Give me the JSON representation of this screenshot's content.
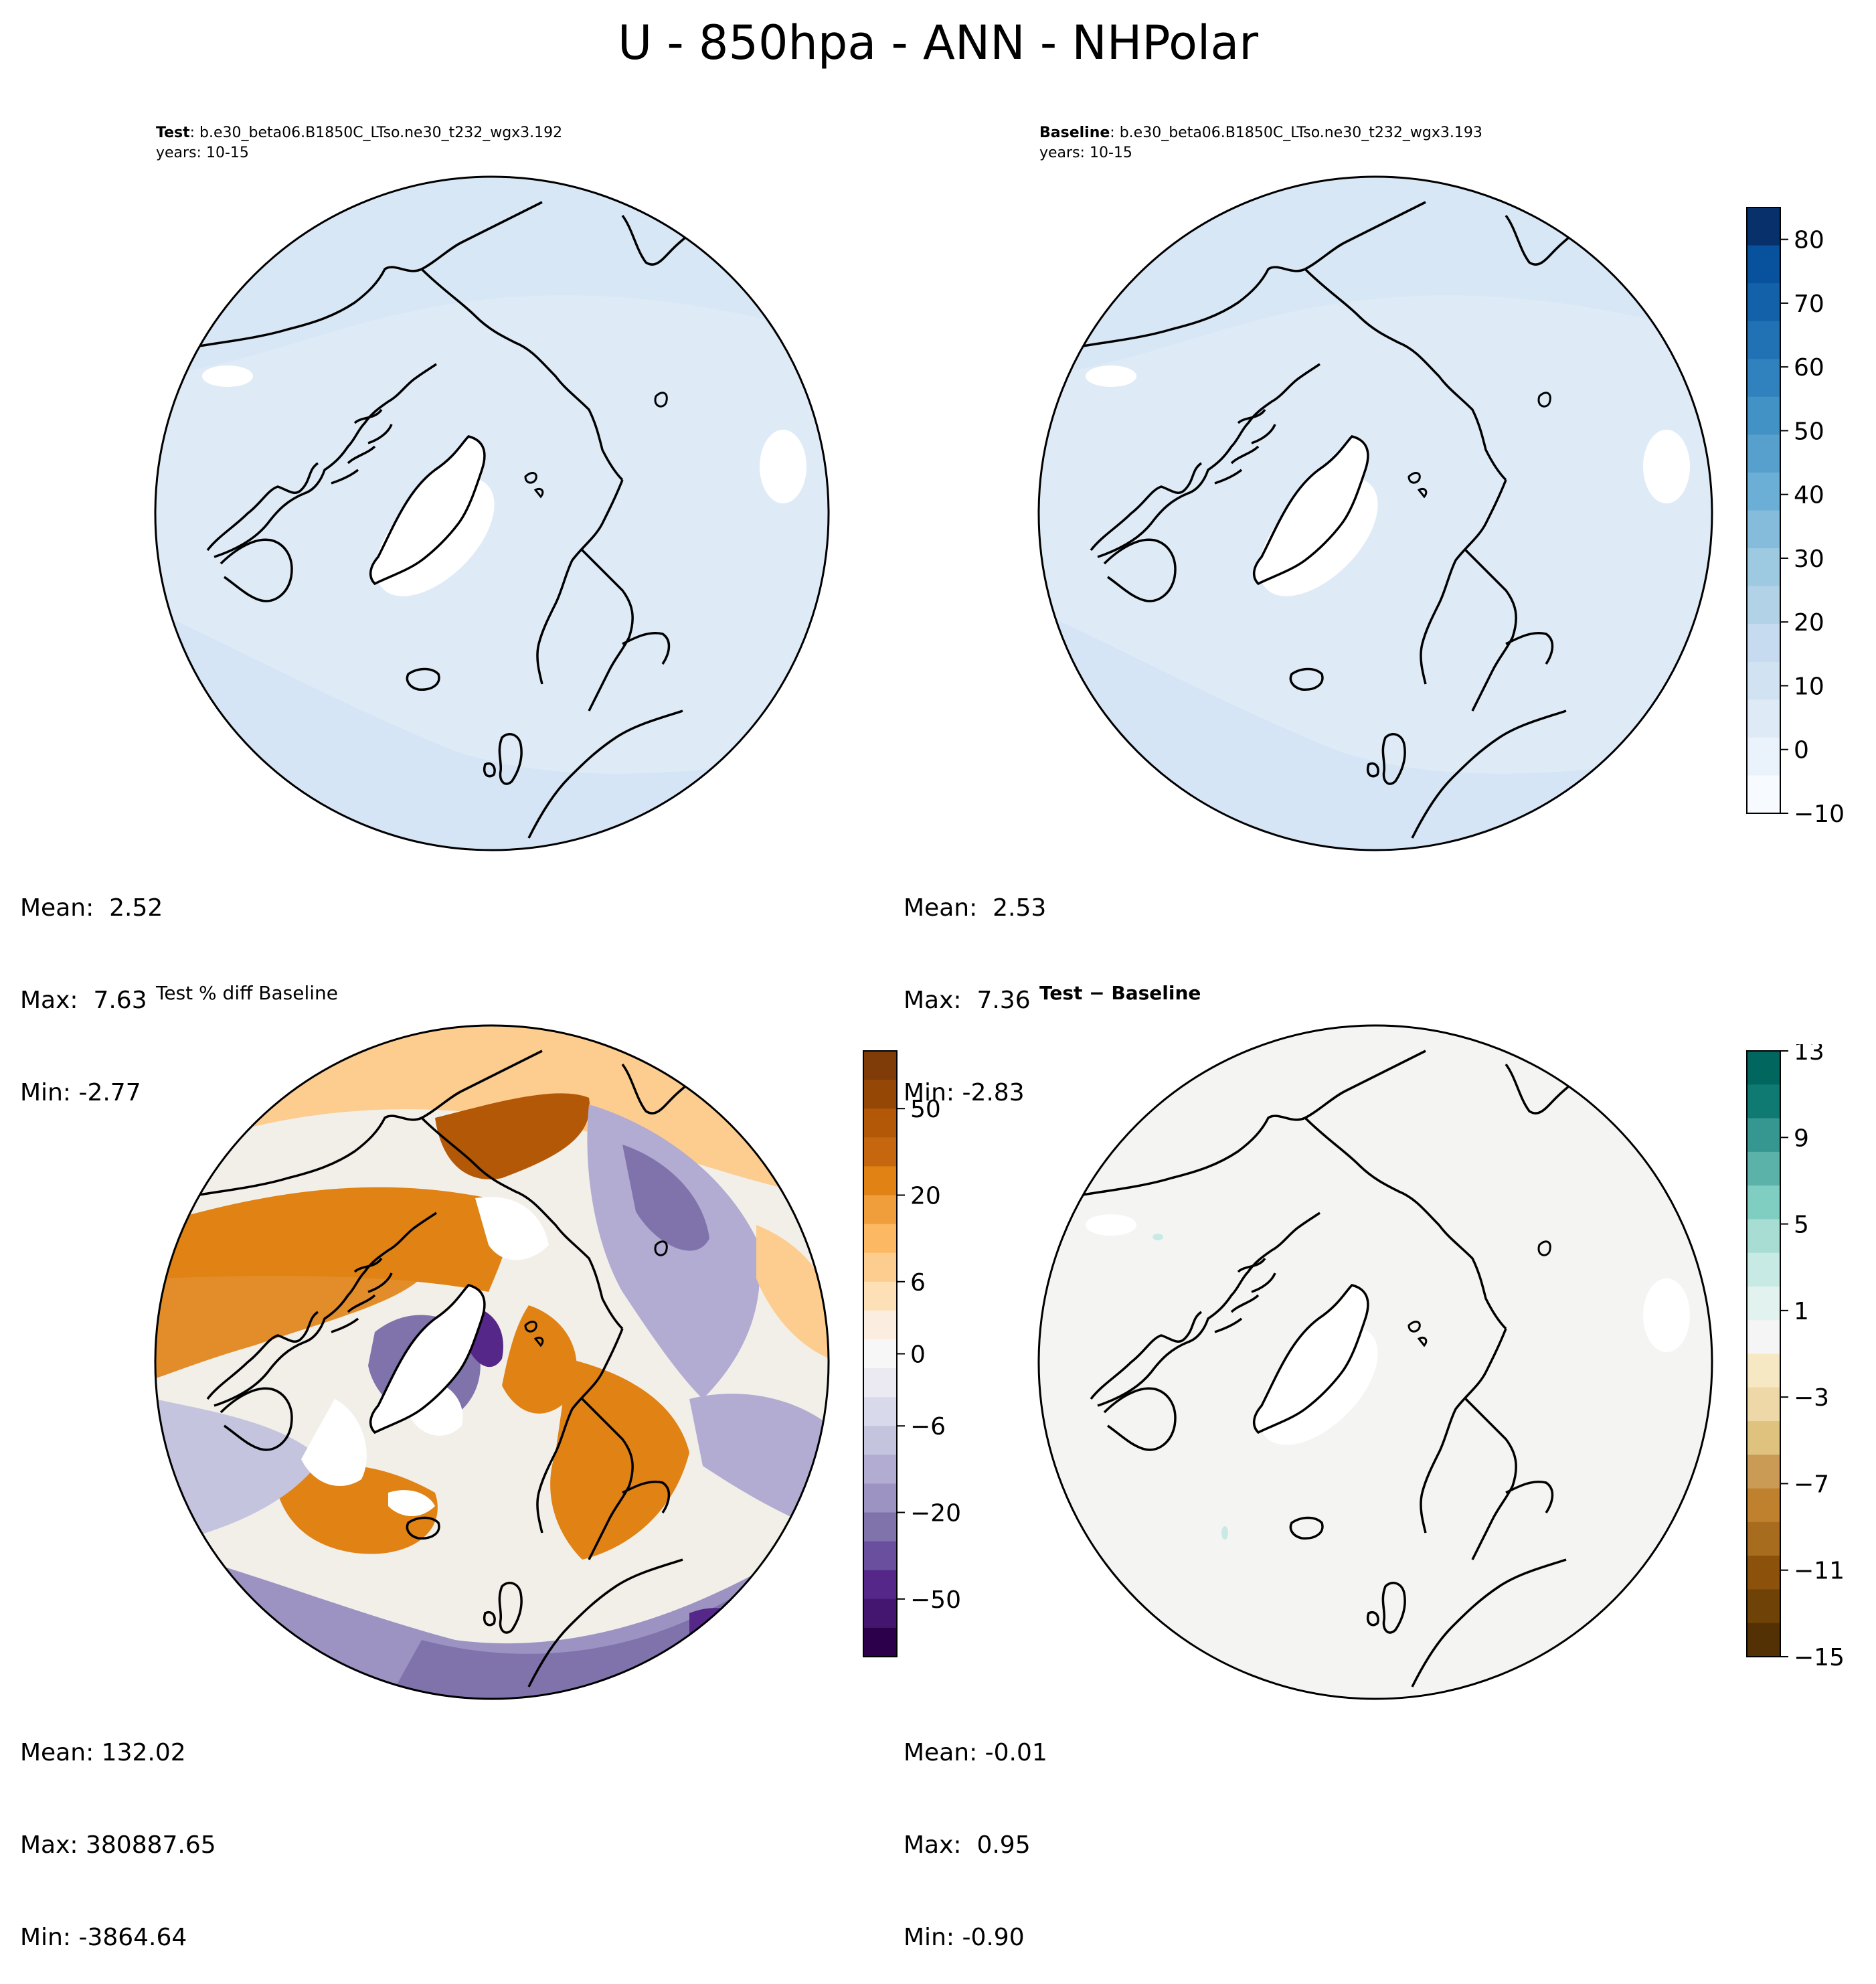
{
  "figure_title": "U - 850hpa - ANN - NHPolar",
  "panels": {
    "test": {
      "label": "Test",
      "case": ": b.e30_beta06.B1850C_LTso.ne30_t232_wgx3.192",
      "years": "years: 10-15",
      "stats": {
        "mean": "Mean:  2.52",
        "max": "Max:  7.63",
        "min": "Min: -2.77"
      }
    },
    "baseline": {
      "label": "Baseline",
      "case": ": b.e30_beta06.B1850C_LTso.ne30_t232_wgx3.193",
      "years": "years: 10-15",
      "stats": {
        "mean": "Mean:  2.53",
        "max": "Max:  7.36",
        "min": "Min: -2.83"
      }
    },
    "pct_diff": {
      "title": "Test % diff Baseline",
      "stats": {
        "mean": "Mean: 132.02",
        "max": "Max: 380887.65",
        "min": "Min: -3864.64"
      }
    },
    "diff": {
      "title": "Test − Baseline",
      "stats": {
        "mean": "Mean: -0.01",
        "max": "Max:  0.95",
        "min": "Min: -0.90"
      }
    }
  },
  "colorbars": {
    "main": {
      "ticks": [
        "−10",
        "0",
        "10",
        "20",
        "30",
        "40",
        "50",
        "60",
        "70",
        "80"
      ],
      "tick_values": [
        -10,
        0,
        10,
        20,
        30,
        40,
        50,
        60,
        70,
        80
      ],
      "range": [
        -10,
        85
      ],
      "colors": [
        "#f7fbff",
        "#eaf2fb",
        "#deebf7",
        "#d1e3f3",
        "#c6dbef",
        "#b2d2e8",
        "#9ecae1",
        "#85bcdc",
        "#6baed6",
        "#57a0ce",
        "#4292c6",
        "#3082be",
        "#2171b5",
        "#1361a9",
        "#08519c",
        "#08306b"
      ]
    },
    "pct_diff": {
      "ticks": [
        "50",
        "20",
        "6",
        "0",
        "−6",
        "−20",
        "−50"
      ],
      "colors_top_to_bottom": [
        "#7f3b08",
        "#954706",
        "#b35806",
        "#c6670f",
        "#e08214",
        "#f09e3c",
        "#fdb863",
        "#fdcc8f",
        "#fee0b6",
        "#fbede0",
        "#f7f7f7",
        "#ebe9f2",
        "#d8daeb",
        "#c5c4df",
        "#b2abd2",
        "#9d93c3",
        "#8073ac",
        "#6b4f9f",
        "#542788",
        "#451670",
        "#2d004b"
      ]
    },
    "diff": {
      "ticks": [
        "13",
        "9",
        "5",
        "1",
        "−3",
        "−7",
        "−11",
        "−15"
      ],
      "tick_values": [
        13,
        9,
        5,
        1,
        -3,
        -7,
        -11,
        -15
      ],
      "colors_top_to_bottom": [
        "#01665e",
        "#0e7a72",
        "#35978f",
        "#5ab2a8",
        "#80cdc1",
        "#a8ddd3",
        "#c7eae5",
        "#e2f2ef",
        "#f5f5f5",
        "#f6e8c3",
        "#eed8a8",
        "#dfc27d",
        "#c99b55",
        "#bf812d",
        "#a86c1f",
        "#8c510a",
        "#6f4208",
        "#543005"
      ]
    }
  }
}
